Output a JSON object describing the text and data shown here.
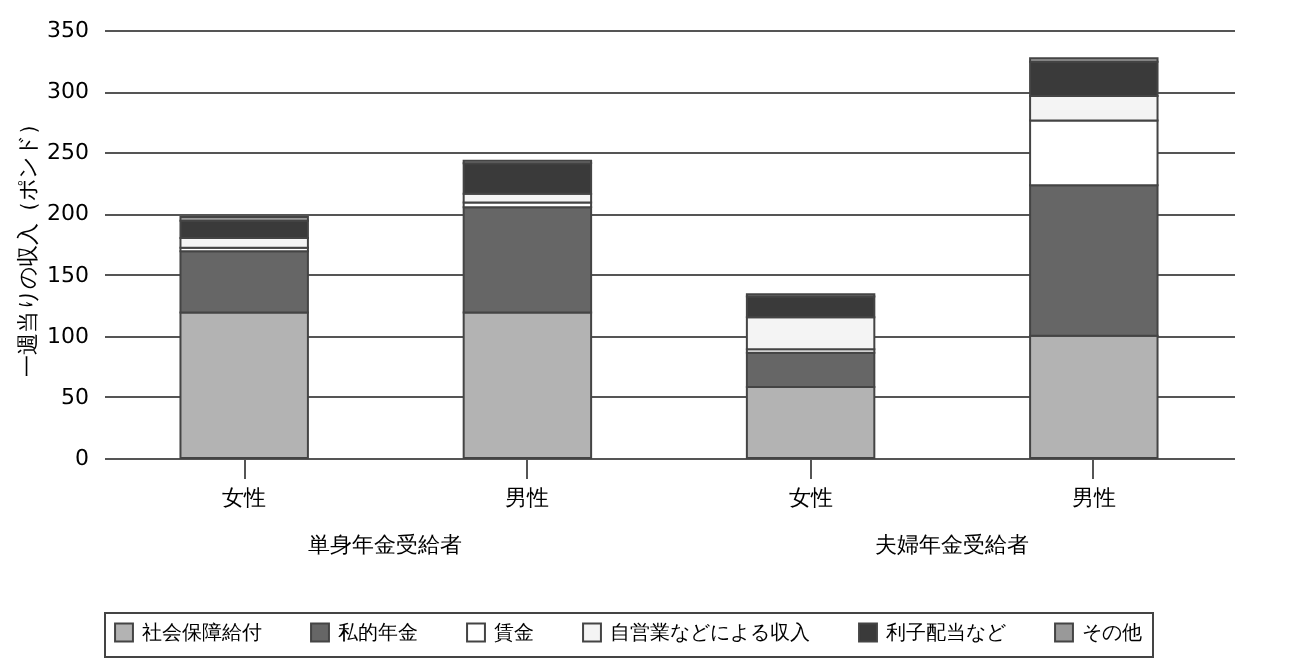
{
  "chart_data": {
    "type": "bar",
    "stacked": true,
    "ylabel": "一週当りの収入（ポンド）",
    "categories": [
      "女性",
      "男性",
      "女性",
      "男性"
    ],
    "annotations": [
      "単身年金受給者",
      "夫婦年金受給者"
    ],
    "ylim": [
      0,
      350
    ],
    "yticks": [
      0,
      50,
      100,
      150,
      200,
      250,
      300,
      350
    ],
    "grid": "y",
    "legend": "bottom",
    "series": [
      {
        "name": "社会保障給付",
        "color": "#b3b3b3",
        "values": [
          119,
          119,
          58,
          100
        ]
      },
      {
        "name": "私的年金",
        "color": "#666666",
        "values": [
          50,
          86,
          28,
          123
        ]
      },
      {
        "name": "賃金",
        "color": "#ffffff",
        "values": [
          3,
          4,
          3,
          53
        ]
      },
      {
        "name": "自営業などによる収入",
        "color": "#f4f4f4",
        "values": [
          8,
          7,
          26,
          20
        ]
      },
      {
        "name": "利子配当など",
        "color": "#3a3a3a",
        "values": [
          14,
          25,
          17,
          28
        ]
      },
      {
        "name": "その他",
        "color": "#999999",
        "values": [
          3,
          2,
          2,
          3
        ]
      }
    ]
  }
}
